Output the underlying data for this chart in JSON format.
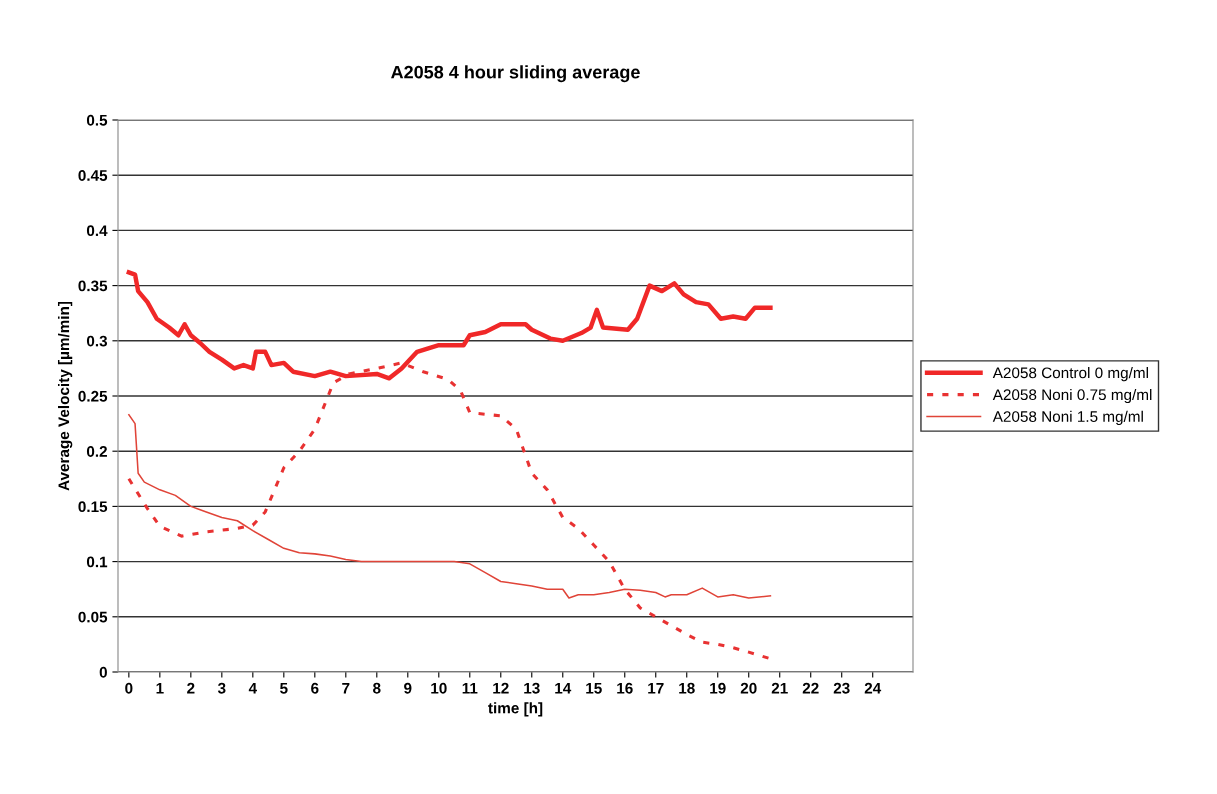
{
  "chart_data": {
    "type": "line",
    "title": "A2058 4 hour sliding average",
    "xlabel": "time [h]",
    "ylabel": "Average Velocity [µm/min]",
    "xlim": [
      -0.35,
      25.3
    ],
    "xticks": [
      0,
      1,
      2,
      3,
      4,
      5,
      6,
      7,
      8,
      9,
      10,
      11,
      12,
      13,
      14,
      15,
      16,
      17,
      18,
      19,
      20,
      21,
      22,
      23,
      24
    ],
    "ylim": [
      0,
      0.5
    ],
    "yticks": [
      0,
      0.05,
      0.1,
      0.15,
      0.2,
      0.25,
      0.3,
      0.35,
      0.4,
      0.45,
      0.5
    ],
    "grid": "y",
    "legend": "right",
    "marker": "none",
    "series": [
      {
        "name": "A2058 Control 0 mg/ml",
        "color": "#f02828",
        "line_style": "solid",
        "x": [
          0,
          0.2,
          0.3,
          0.6,
          0.9,
          1.3,
          1.6,
          1.8,
          2.0,
          2.3,
          2.6,
          3.0,
          3.4,
          3.7,
          4.0,
          4.1,
          4.4,
          4.6,
          5.0,
          5.3,
          6,
          6.5,
          7,
          8,
          8.4,
          8.8,
          9.3,
          10,
          10.8,
          11,
          11.5,
          12,
          12.8,
          13,
          13.6,
          14,
          14.6,
          14.9,
          15.1,
          15.3,
          16.1,
          16.4,
          16.8,
          17.2,
          17.6,
          17.9,
          18.3,
          18.7,
          19.1,
          19.5,
          19.9,
          20.2,
          20.7
        ],
        "values": [
          0.362,
          0.36,
          0.345,
          0.335,
          0.32,
          0.312,
          0.305,
          0.315,
          0.305,
          0.298,
          0.29,
          0.283,
          0.275,
          0.278,
          0.275,
          0.29,
          0.29,
          0.278,
          0.28,
          0.272,
          0.268,
          0.272,
          0.268,
          0.27,
          0.266,
          0.275,
          0.29,
          0.296,
          0.296,
          0.305,
          0.308,
          0.315,
          0.315,
          0.31,
          0.302,
          0.3,
          0.307,
          0.312,
          0.328,
          0.312,
          0.31,
          0.32,
          0.35,
          0.345,
          0.352,
          0.342,
          0.335,
          0.333,
          0.32,
          0.322,
          0.32,
          0.33,
          0.33
        ]
      },
      {
        "name": "A2058 Noni 0.75 mg/ml",
        "color": "#e83232",
        "line_style": "dotted",
        "x": [
          0,
          0.6,
          1,
          1.7,
          2.5,
          3.5,
          4,
          4.4,
          5,
          5.5,
          6,
          6.6,
          7.1,
          8,
          8.8,
          9.5,
          10.3,
          10.7,
          11,
          12,
          12.5,
          13,
          13.5,
          14,
          14.5,
          15,
          15.5,
          16,
          16.5,
          17,
          17.5,
          18,
          18.5,
          19,
          19.5,
          20,
          20.7
        ],
        "values": [
          0.175,
          0.148,
          0.132,
          0.123,
          0.127,
          0.13,
          0.133,
          0.145,
          0.185,
          0.2,
          0.22,
          0.262,
          0.27,
          0.275,
          0.28,
          0.272,
          0.265,
          0.255,
          0.235,
          0.232,
          0.22,
          0.18,
          0.165,
          0.14,
          0.13,
          0.115,
          0.1,
          0.075,
          0.058,
          0.05,
          0.042,
          0.034,
          0.027,
          0.025,
          0.022,
          0.018,
          0.012
        ]
      },
      {
        "name": "A2058 Noni 1.5 mg/ml",
        "color": "#e04438",
        "line_style": "solid",
        "x": [
          0,
          0.2,
          0.3,
          0.5,
          1,
          1.5,
          2,
          2.5,
          3,
          3.5,
          4,
          4.5,
          5,
          5.5,
          6,
          6.5,
          7,
          7.5,
          8,
          10,
          10.5,
          11,
          11.5,
          12,
          12.5,
          13,
          13.5,
          14,
          14.2,
          14.5,
          15,
          15.5,
          16,
          16.5,
          17,
          17.3,
          17.5,
          18,
          18.5,
          19,
          19.5,
          20,
          20.7
        ],
        "values": [
          0.233,
          0.225,
          0.18,
          0.172,
          0.165,
          0.16,
          0.15,
          0.145,
          0.14,
          0.137,
          0.128,
          0.12,
          0.112,
          0.108,
          0.107,
          0.105,
          0.102,
          0.1,
          0.1,
          0.1,
          0.1,
          0.098,
          0.09,
          0.082,
          0.08,
          0.078,
          0.075,
          0.075,
          0.067,
          0.07,
          0.07,
          0.072,
          0.075,
          0.074,
          0.072,
          0.068,
          0.07,
          0.07,
          0.076,
          0.068,
          0.07,
          0.067,
          0.069
        ]
      }
    ]
  }
}
